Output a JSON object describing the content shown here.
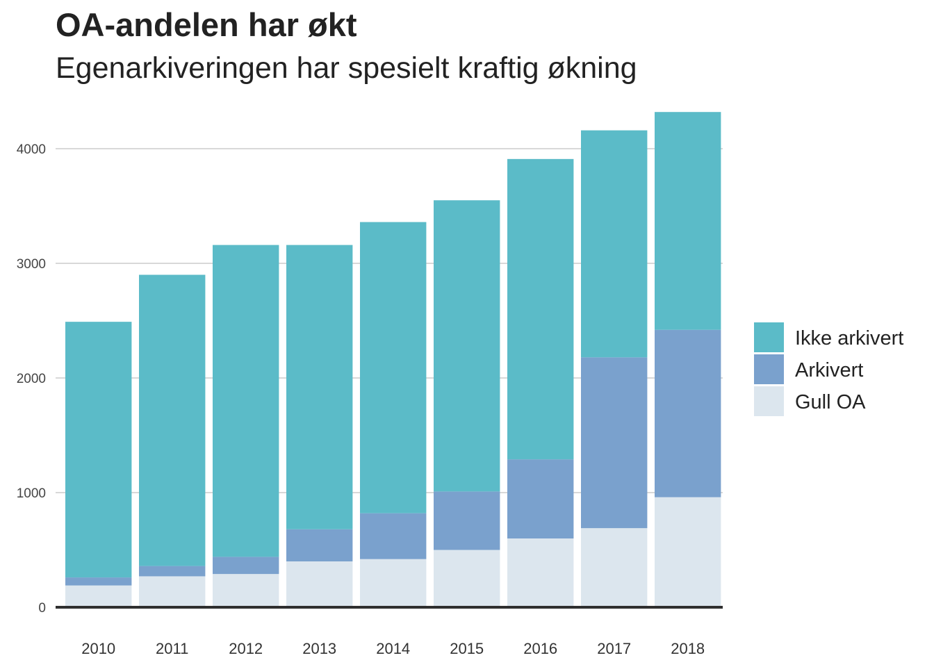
{
  "chart_data": {
    "type": "bar",
    "stacked": true,
    "title": "OA-andelen har økt",
    "subtitle": "Egenarkiveringen har spesielt kraftig økning",
    "xlabel": "",
    "ylabel": "",
    "ylim": [
      0,
      4400
    ],
    "yticks": [
      0,
      1000,
      2000,
      3000,
      4000
    ],
    "grid": true,
    "legend_position": "right",
    "categories": [
      "2010",
      "2011",
      "2012",
      "2013",
      "2014",
      "2015",
      "2016",
      "2017",
      "2018"
    ],
    "series": [
      {
        "name": "Gull OA",
        "color": "#dce6ee",
        "values": [
          190,
          270,
          290,
          400,
          420,
          500,
          600,
          690,
          960
        ]
      },
      {
        "name": "Arkivert",
        "color": "#7aa1cd",
        "values": [
          70,
          90,
          150,
          280,
          400,
          510,
          690,
          1490,
          1460
        ]
      },
      {
        "name": "Ikke arkivert",
        "color": "#5bbbc8",
        "values": [
          2230,
          2540,
          2720,
          2480,
          2540,
          2540,
          2620,
          1980,
          1900
        ]
      }
    ],
    "legend_order": [
      "Ikke arkivert",
      "Arkivert",
      "Gull OA"
    ]
  }
}
